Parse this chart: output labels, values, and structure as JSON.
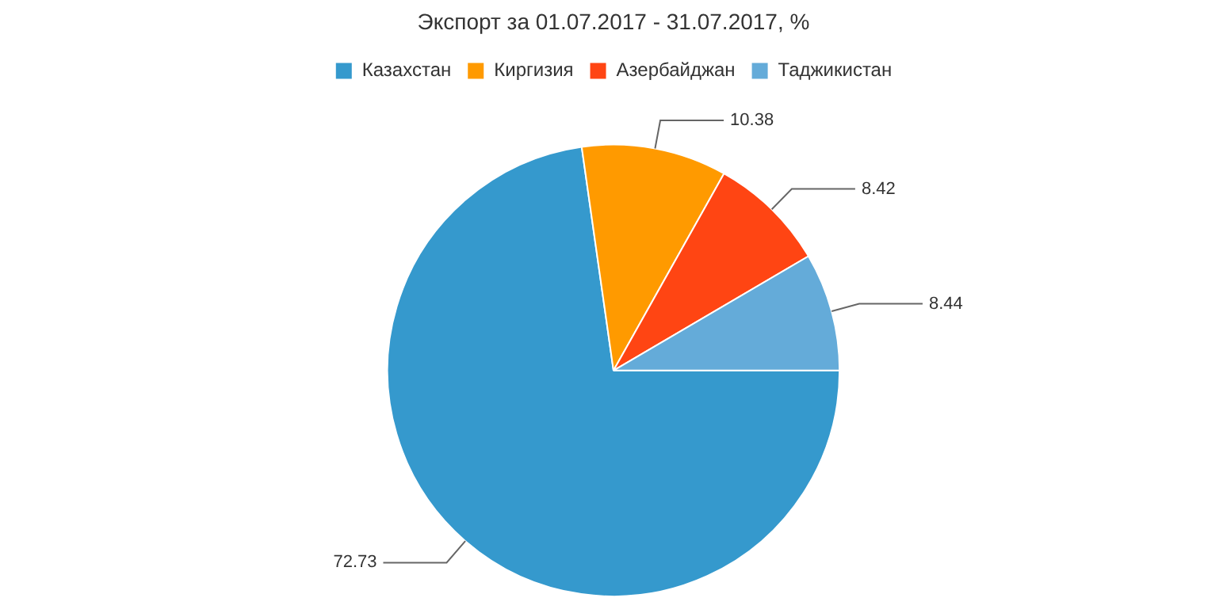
{
  "chart_data": {
    "type": "pie",
    "title": "Экспорт за 01.07.2017 - 31.07.2017, %",
    "categories": [
      "Казахстан",
      "Киргизия",
      "Азербайджан",
      "Таджикистан"
    ],
    "values": [
      72.73,
      10.38,
      8.42,
      8.44
    ],
    "colors": [
      "#3599cd",
      "#ff9a00",
      "#ff4513",
      "#64abd9"
    ],
    "legend": "top",
    "data_labels": true
  }
}
